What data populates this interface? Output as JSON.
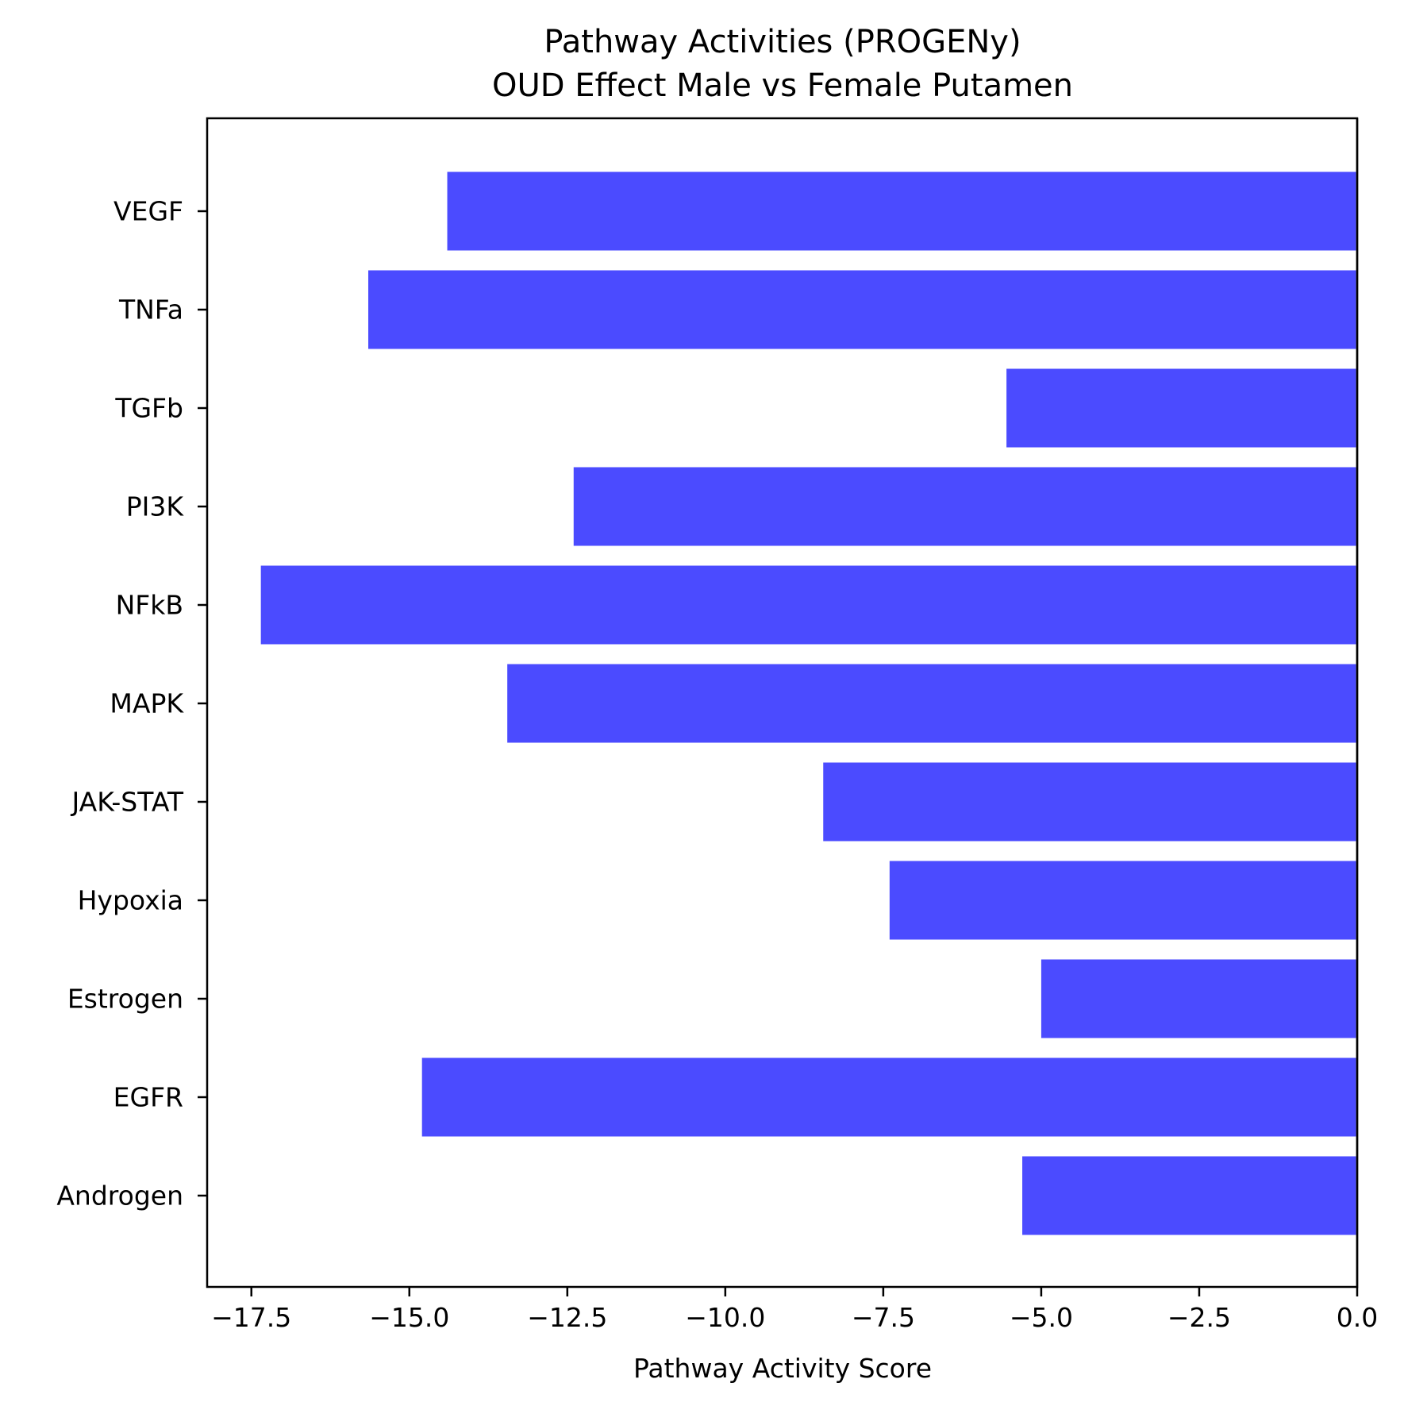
{
  "chart_data": {
    "type": "bar",
    "orientation": "horizontal",
    "title": "Pathway Activities (PROGENy)",
    "subtitle": "OUD Effect Male vs Female Putamen",
    "xlabel": "Pathway Activity Score",
    "ylabel": "",
    "xlim": [
      -18.2,
      0.0
    ],
    "xticks": [
      -17.5,
      -15.0,
      -12.5,
      -10.0,
      -7.5,
      -5.0,
      -2.5,
      0.0
    ],
    "xtick_labels": [
      "−17.5",
      "−15.0",
      "−12.5",
      "−10.0",
      "−7.5",
      "−5.0",
      "−2.5",
      "0.0"
    ],
    "categories": [
      "VEGF",
      "TNFa",
      "TGFb",
      "PI3K",
      "NFkB",
      "MAPK",
      "JAK-STAT",
      "Hypoxia",
      "Estrogen",
      "EGFR",
      "Androgen"
    ],
    "values": [
      -14.4,
      -15.65,
      -5.55,
      -12.4,
      -17.35,
      -13.45,
      -8.45,
      -7.4,
      -5.0,
      -14.8,
      -5.3
    ],
    "bar_color": "#4b4bff",
    "grid": false,
    "legend": "none",
    "zero_line": true
  }
}
